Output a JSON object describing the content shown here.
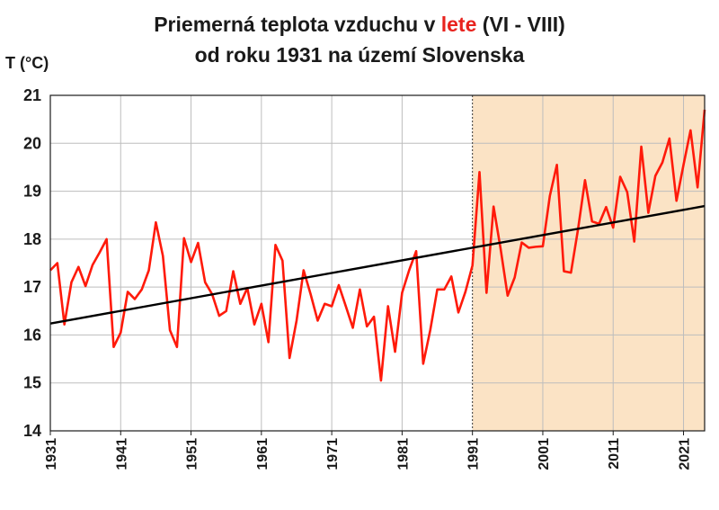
{
  "title": {
    "part1": "Priemerná teplota vzduchu v ",
    "highlight": "lete",
    "part2": " (VI - VIII)",
    "line2": "od roku 1931 na území Slovenska",
    "highlight_color": "#e8231e"
  },
  "chart_data": {
    "type": "line",
    "ylabel": "T (°C)",
    "xlabel": "",
    "xlim": [
      1931,
      2024
    ],
    "ylim": [
      14,
      21
    ],
    "yticks": [
      14,
      15,
      16,
      17,
      18,
      19,
      20,
      21
    ],
    "xticks": [
      1931,
      1941,
      1951,
      1961,
      1971,
      1981,
      1991,
      2001,
      2011,
      2021
    ],
    "grid": true,
    "shaded_period": {
      "from": 1991,
      "to": 2024,
      "color": "#fbe3c5"
    },
    "series": [
      {
        "color": "#ff1a0a",
        "x": [
          1931,
          1932,
          1933,
          1934,
          1935,
          1936,
          1937,
          1938,
          1939,
          1940,
          1941,
          1942,
          1943,
          1944,
          1945,
          1946,
          1947,
          1948,
          1949,
          1950,
          1951,
          1952,
          1953,
          1954,
          1955,
          1956,
          1957,
          1958,
          1959,
          1960,
          1961,
          1962,
          1963,
          1964,
          1965,
          1966,
          1967,
          1968,
          1969,
          1970,
          1971,
          1972,
          1973,
          1974,
          1975,
          1976,
          1977,
          1978,
          1979,
          1980,
          1981,
          1982,
          1983,
          1984,
          1985,
          1986,
          1987,
          1988,
          1989,
          1990,
          1991,
          1992,
          1993,
          1994,
          1995,
          1996,
          1997,
          1998,
          1999,
          2000,
          2001,
          2002,
          2003,
          2004,
          2005,
          2006,
          2007,
          2008,
          2009,
          2010,
          2011,
          2012,
          2013,
          2014,
          2015,
          2016,
          2017,
          2018,
          2019,
          2020,
          2021,
          2022,
          2023,
          2024
        ],
        "y": [
          17.35,
          17.5,
          16.22,
          17.1,
          17.42,
          17.02,
          17.46,
          17.72,
          18.0,
          15.75,
          16.05,
          16.9,
          16.75,
          16.95,
          17.35,
          18.35,
          17.65,
          16.1,
          15.75,
          18.02,
          17.52,
          17.92,
          17.1,
          16.85,
          16.4,
          16.5,
          17.33,
          16.65,
          16.98,
          16.22,
          16.65,
          15.85,
          17.88,
          17.55,
          15.52,
          16.3,
          17.35,
          16.85,
          16.3,
          16.65,
          16.6,
          17.04,
          16.6,
          16.15,
          16.95,
          16.18,
          16.38,
          15.05,
          16.6,
          15.65,
          16.88,
          17.35,
          17.75,
          15.4,
          16.1,
          16.95,
          16.95,
          17.22,
          16.47,
          16.9,
          17.45,
          19.4,
          16.88,
          18.68,
          17.8,
          16.82,
          17.2,
          17.93,
          17.82,
          17.84,
          17.85,
          18.9,
          19.55,
          17.33,
          17.3,
          18.2,
          19.23,
          18.37,
          18.32,
          18.67,
          18.24,
          19.3,
          18.98,
          17.95,
          19.93,
          18.55,
          19.32,
          19.6,
          20.1,
          18.8,
          19.55,
          20.27,
          19.08,
          20.7
        ]
      },
      {
        "color": "#000000",
        "x": [
          1931,
          2024
        ],
        "y": [
          16.24,
          18.69
        ]
      }
    ]
  }
}
